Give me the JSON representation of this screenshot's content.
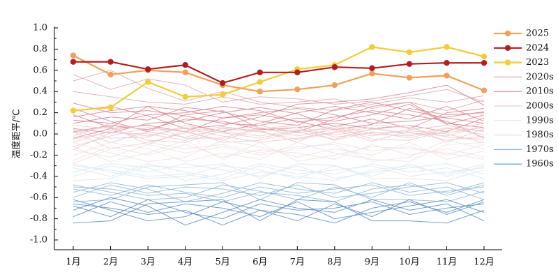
{
  "chart_data": {
    "type": "line",
    "title": "",
    "xlabel": "",
    "ylabel": "温度距平/℃",
    "ylim": [
      -1.0,
      1.0
    ],
    "yticks": [
      "1.0",
      "0.8",
      "0.6",
      "0.4",
      "0.2",
      "0.0",
      "-0.2",
      "-0.4",
      "-0.6",
      "-0.8",
      "-1.0"
    ],
    "yticks_values": [
      1.0,
      0.8,
      0.6,
      0.4,
      0.2,
      0.0,
      -0.2,
      -0.4,
      -0.6,
      -0.8,
      -1.0
    ],
    "categories": [
      "1月",
      "2月",
      "3月",
      "4月",
      "5月",
      "6月",
      "7月",
      "8月",
      "9月",
      "10月",
      "11月",
      "12月"
    ],
    "grid": false,
    "legend_position": "right",
    "series": [
      {
        "name": "2025",
        "color": "#f0a05a",
        "style": "bold-marker",
        "values": [
          0.74,
          0.56,
          0.6,
          0.58,
          0.46,
          0.4,
          0.42,
          0.46,
          0.57,
          0.53,
          0.55,
          0.41
        ]
      },
      {
        "name": "2024",
        "color": "#b21d1d",
        "style": "bold-marker",
        "values": [
          0.68,
          0.68,
          0.61,
          0.65,
          0.48,
          0.58,
          0.58,
          0.63,
          0.62,
          0.66,
          0.67,
          0.67
        ]
      },
      {
        "name": "2023",
        "color": "#f2cc3a",
        "style": "bold-marker",
        "values": [
          0.22,
          0.25,
          0.49,
          0.35,
          0.37,
          0.49,
          0.61,
          0.65,
          0.82,
          0.77,
          0.82,
          0.73
        ]
      }
    ],
    "decade_groups": [
      {
        "name": "2020s",
        "color": "#e2a6ae",
        "lines": [
          [
            0.56,
            0.42,
            0.52,
            0.46,
            0.3,
            0.35,
            0.33,
            0.28,
            0.31,
            0.36,
            0.42,
            0.3
          ],
          [
            0.5,
            0.6,
            0.43,
            0.31,
            0.4,
            0.3,
            0.25,
            0.22,
            0.28,
            0.34,
            0.3,
            0.36
          ],
          [
            0.4,
            0.35,
            0.3,
            0.28,
            0.35,
            0.28,
            0.3,
            0.33,
            0.24,
            0.3,
            0.22,
            0.32
          ]
        ]
      },
      {
        "name": "2010s",
        "color": "#d9848f",
        "lines": [
          [
            0.18,
            0.06,
            0.26,
            0.22,
            0.15,
            0.2,
            0.24,
            0.18,
            0.1,
            0.12,
            0.16,
            0.21
          ],
          [
            0.1,
            0.16,
            0.13,
            0.25,
            0.21,
            0.12,
            0.08,
            0.23,
            0.3,
            0.22,
            0.15,
            0.1
          ],
          [
            0.29,
            0.2,
            0.22,
            0.17,
            0.1,
            0.08,
            0.15,
            0.12,
            0.18,
            0.28,
            0.09,
            0.18
          ],
          [
            0.05,
            0.01,
            0.1,
            0.12,
            0.2,
            0.25,
            0.19,
            0.07,
            0.14,
            0.05,
            0.2,
            0.24
          ],
          [
            0.22,
            0.26,
            0.17,
            0.05,
            0.08,
            0.16,
            0.28,
            0.3,
            0.33,
            0.39,
            0.46,
            0.27
          ],
          [
            0.13,
            0.1,
            0.18,
            0.2,
            0.26,
            0.22,
            0.11,
            0.16,
            0.22,
            0.18,
            0.12,
            -0.04
          ],
          [
            0.02,
            0.08,
            0.04,
            0.14,
            0.12,
            0.04,
            0.06,
            0.1,
            0.05,
            0.08,
            0.02,
            0.15
          ],
          [
            0.16,
            0.22,
            0.26,
            0.1,
            0.02,
            0.1,
            0.2,
            0.26,
            0.2,
            0.14,
            0.26,
            0.12
          ],
          [
            -0.04,
            0.05,
            0.08,
            0.02,
            0.15,
            0.18,
            0.12,
            0.04,
            0.09,
            0.24,
            0.18,
            0.2
          ],
          [
            0.24,
            0.12,
            0.02,
            0.18,
            0.22,
            0.05,
            0.02,
            0.14,
            0.26,
            0.3,
            0.1,
            0.06
          ]
        ]
      },
      {
        "name": "2000s",
        "color": "#ecc7cb",
        "lines": [
          [
            -0.05,
            0.02,
            -0.02,
            0.06,
            0.01,
            -0.04,
            0.03,
            0.05,
            -0.02,
            0.04,
            0.08,
            0.02
          ],
          [
            0.04,
            -0.08,
            0.02,
            -0.03,
            0.05,
            0.02,
            -0.05,
            0.01,
            0.06,
            -0.01,
            0.01,
            0.06
          ],
          [
            -0.12,
            -0.02,
            0.06,
            0.02,
            -0.06,
            0.05,
            0.08,
            -0.03,
            0.01,
            0.02,
            -0.06,
            -0.02
          ],
          [
            0.08,
            0.05,
            -0.06,
            -0.08,
            0.03,
            0.08,
            0.01,
            0.07,
            -0.05,
            -0.06,
            0.03,
            0.1
          ],
          [
            -0.02,
            0.1,
            0.03,
            0.05,
            -0.02,
            -0.08,
            -0.04,
            0.02,
            0.08,
            0.06,
            -0.03,
            -0.05
          ],
          [
            0.02,
            -0.14,
            -0.08,
            0.01,
            0.07,
            0.02,
            0.06,
            -0.06,
            0.02,
            -0.04,
            0.05,
            0.03
          ],
          [
            -0.08,
            0.03,
            0.09,
            -0.04,
            -0.04,
            0.06,
            -0.02,
            0.04,
            -0.07,
            0.03,
            0.0,
            -0.08
          ],
          [
            0.06,
            -0.04,
            -0.03,
            0.08,
            0.02,
            -0.02,
            0.04,
            -0.01,
            0.04,
            0.08,
            -0.08,
            0.05
          ],
          [
            -0.15,
            0.01,
            0.0,
            -0.06,
            0.06,
            0.03,
            -0.08,
            0.08,
            0.0,
            -0.02,
            0.06,
            -0.01
          ],
          [
            0.01,
            0.07,
            -0.1,
            0.03,
            -0.08,
            -0.06,
            0.02,
            -0.05,
            0.05,
            0.01,
            -0.02,
            0.08
          ]
        ]
      },
      {
        "name": "1990s",
        "color": "#f2dfe0",
        "lines": [
          [
            -0.15,
            -0.22,
            -0.1,
            -0.18,
            -0.12,
            -0.2,
            -0.14,
            -0.08,
            -0.16,
            -0.12,
            -0.2,
            -0.1
          ],
          [
            -0.25,
            -0.12,
            -0.2,
            -0.1,
            -0.22,
            -0.15,
            -0.18,
            -0.24,
            -0.1,
            -0.2,
            -0.14,
            -0.22
          ],
          [
            -0.08,
            -0.18,
            -0.26,
            -0.22,
            -0.06,
            -0.12,
            -0.22,
            -0.14,
            -0.2,
            -0.08,
            -0.24,
            -0.16
          ],
          [
            -0.2,
            -0.08,
            -0.14,
            -0.26,
            -0.18,
            -0.24,
            -0.08,
            -0.18,
            -0.24,
            -0.26,
            -0.1,
            -0.08
          ],
          [
            -0.12,
            -0.26,
            -0.18,
            -0.06,
            -0.24,
            -0.08,
            -0.26,
            -0.2,
            -0.12,
            -0.14,
            -0.18,
            -0.24
          ],
          [
            -0.28,
            -0.14,
            -0.08,
            -0.14,
            -0.1,
            -0.18,
            -0.12,
            -0.1,
            -0.26,
            -0.22,
            -0.06,
            -0.14
          ]
        ]
      },
      {
        "name": "1980s",
        "color": "#dbe6f0",
        "lines": [
          [
            -0.32,
            -0.4,
            -0.28,
            -0.36,
            -0.42,
            -0.3,
            -0.38,
            -0.34,
            -0.3,
            -0.4,
            -0.36,
            -0.32
          ],
          [
            -0.4,
            -0.3,
            -0.36,
            -0.28,
            -0.34,
            -0.4,
            -0.3,
            -0.42,
            -0.36,
            -0.32,
            -0.28,
            -0.38
          ],
          [
            -0.28,
            -0.36,
            -0.42,
            -0.4,
            -0.3,
            -0.34,
            -0.42,
            -0.3,
            -0.4,
            -0.28,
            -0.4,
            -0.3
          ],
          [
            -0.36,
            -0.28,
            -0.32,
            -0.44,
            -0.38,
            -0.28,
            -0.34,
            -0.38,
            -0.28,
            -0.36,
            -0.32,
            -0.42
          ],
          [
            -0.44,
            -0.42,
            -0.3,
            -0.32,
            -0.28,
            -0.42,
            -0.28,
            -0.3,
            -0.42,
            -0.42,
            -0.44,
            -0.34
          ],
          [
            -0.3,
            -0.34,
            -0.4,
            -0.38,
            -0.44,
            -0.36,
            -0.4,
            -0.44,
            -0.34,
            -0.3,
            -0.38,
            -0.28
          ]
        ]
      },
      {
        "name": "1970s",
        "color": "#8fb7d9",
        "lines": [
          [
            -0.52,
            -0.58,
            -0.48,
            -0.55,
            -0.6,
            -0.5,
            -0.56,
            -0.52,
            -0.48,
            -0.58,
            -0.54,
            -0.5
          ],
          [
            -0.6,
            -0.48,
            -0.56,
            -0.5,
            -0.52,
            -0.58,
            -0.48,
            -0.6,
            -0.56,
            -0.5,
            -0.46,
            -0.56
          ],
          [
            -0.48,
            -0.55,
            -0.62,
            -0.6,
            -0.48,
            -0.54,
            -0.62,
            -0.5,
            -0.6,
            -0.46,
            -0.58,
            -0.48
          ],
          [
            -0.55,
            -0.46,
            -0.52,
            -0.64,
            -0.56,
            -0.46,
            -0.52,
            -0.56,
            -0.46,
            -0.55,
            -0.5,
            -0.62
          ],
          [
            -0.64,
            -0.62,
            -0.5,
            -0.48,
            -0.46,
            -0.62,
            -0.46,
            -0.48,
            -0.62,
            -0.62,
            -0.64,
            -0.54
          ],
          [
            -0.5,
            -0.52,
            -0.58,
            -0.56,
            -0.64,
            -0.55,
            -0.58,
            -0.64,
            -0.52,
            -0.48,
            -0.56,
            -0.46
          ]
        ]
      },
      {
        "name": "1960s",
        "color": "#5b8fc4",
        "lines": [
          [
            -0.68,
            -0.78,
            -0.62,
            -0.74,
            -0.8,
            -0.66,
            -0.72,
            -0.7,
            -0.64,
            -0.76,
            -0.7,
            -0.66
          ],
          [
            -0.78,
            -0.64,
            -0.74,
            -0.66,
            -0.7,
            -0.78,
            -0.64,
            -0.8,
            -0.74,
            -0.68,
            -0.62,
            -0.74
          ],
          [
            -0.62,
            -0.72,
            -0.82,
            -0.78,
            -0.64,
            -0.72,
            -0.82,
            -0.66,
            -0.78,
            -0.62,
            -0.76,
            -0.64
          ],
          [
            -0.72,
            -0.6,
            -0.68,
            -0.86,
            -0.74,
            -0.62,
            -0.7,
            -0.74,
            -0.62,
            -0.72,
            -0.66,
            -0.82
          ],
          [
            -0.84,
            -0.82,
            -0.66,
            -0.64,
            -0.62,
            -0.82,
            -0.62,
            -0.64,
            -0.82,
            -0.82,
            -0.84,
            -0.72
          ],
          [
            -0.66,
            -0.7,
            -0.76,
            -0.72,
            -0.86,
            -0.72,
            -0.76,
            -0.84,
            -0.7,
            -0.64,
            -0.74,
            -0.62
          ]
        ]
      }
    ]
  }
}
